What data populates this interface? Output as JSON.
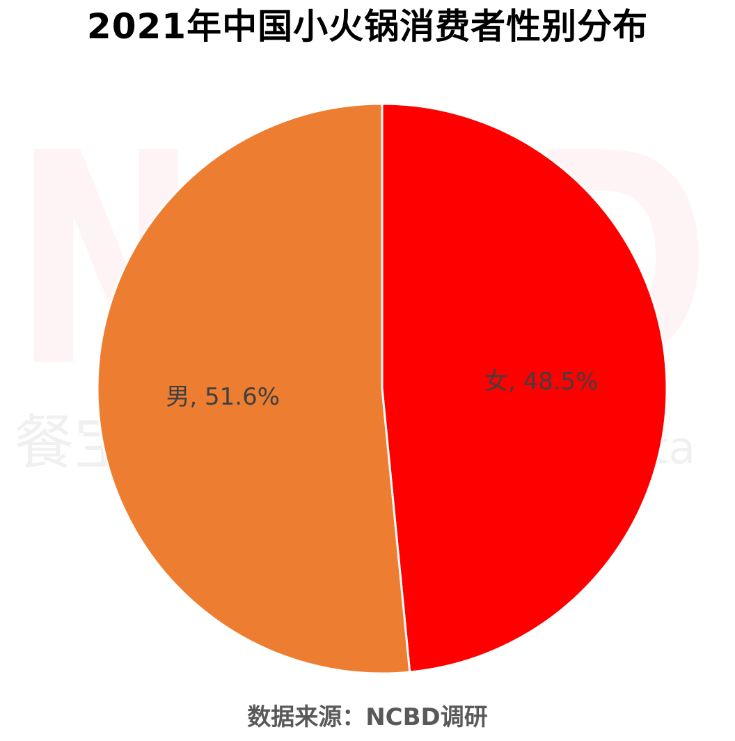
{
  "title": "2021年中国小火锅消费者性别分布",
  "source": "数据来源：NCBD调研",
  "watermark": {
    "logo_text": "NCBD",
    "cn_text": "餐宝",
    "en_suffix": "ta"
  },
  "chart_data": {
    "type": "pie",
    "title": "2021年中国小火锅消费者性别分布",
    "slices": [
      {
        "label": "女",
        "value": 48.5,
        "display": "女, 48.5%",
        "color": "#ff0000"
      },
      {
        "label": "男",
        "value": 51.6,
        "display": "男, 51.6%",
        "color": "#ed7d31"
      }
    ],
    "start_angle_deg": 0,
    "direction": "clockwise",
    "label_color": "#404040",
    "separator_color": "#ffffff"
  }
}
